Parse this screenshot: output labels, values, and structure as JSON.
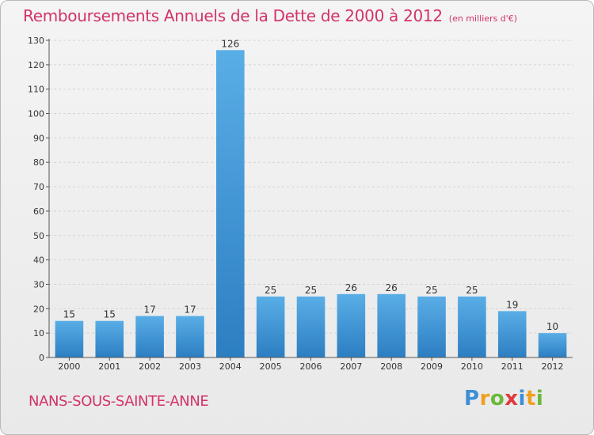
{
  "title": "Remboursements Annuels de la Dette de 2000 à 2012",
  "unit_note": "(en milliers d'€)",
  "commune": "NANS-SOUS-SAINTE-ANNE",
  "brand": {
    "letters": [
      "P",
      "r",
      "o",
      "x",
      "i",
      "t",
      "i"
    ],
    "colors": [
      "#3c8fd6",
      "#f0a020",
      "#6ab83a",
      "#e03a3a",
      "#3c8fd6",
      "#f0a020",
      "#6ab83a"
    ]
  },
  "colors": {
    "title": "#d2336a",
    "bar_top": "#5aaee6",
    "bar_bottom": "#2c7ec2"
  },
  "chart_data": {
    "type": "bar",
    "categories": [
      "2000",
      "2001",
      "2002",
      "2003",
      "2004",
      "2005",
      "2006",
      "2007",
      "2008",
      "2009",
      "2010",
      "2011",
      "2012"
    ],
    "values": [
      15,
      15,
      17,
      17,
      126,
      25,
      25,
      26,
      26,
      25,
      25,
      19,
      10
    ],
    "ylim": [
      0,
      130
    ],
    "yticks": [
      0,
      10,
      20,
      30,
      40,
      50,
      60,
      70,
      80,
      90,
      100,
      110,
      120,
      130
    ],
    "grid": true,
    "xlabel": "",
    "ylabel": ""
  }
}
